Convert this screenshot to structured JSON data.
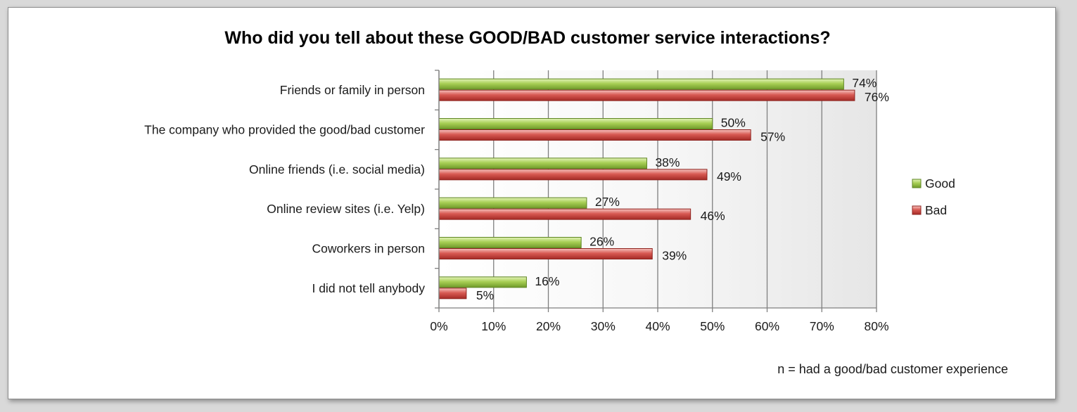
{
  "chart_data": {
    "type": "bar",
    "orientation": "horizontal",
    "title": "Who did you tell about these GOOD/BAD customer service interactions?",
    "categories": [
      "Friends or family in person",
      "The company who provided the good/bad customer",
      "Online friends (i.e. social media)",
      "Online review sites (i.e. Yelp)",
      "Coworkers in person",
      "I did not tell anybody"
    ],
    "series": [
      {
        "name": "Good",
        "values": [
          74,
          50,
          38,
          27,
          26,
          16
        ],
        "color": "#9bc34a"
      },
      {
        "name": "Bad",
        "values": [
          76,
          57,
          49,
          46,
          39,
          5
        ],
        "color": "#d9534f"
      }
    ],
    "data_labels": {
      "Good": [
        "74%",
        "50%",
        "38%",
        "27%",
        "26%",
        "16%"
      ],
      "Bad": [
        "76%",
        "57%",
        "49%",
        "46%",
        "39%",
        "5%"
      ]
    },
    "x_ticks": [
      "0%",
      "10%",
      "20%",
      "30%",
      "40%",
      "50%",
      "60%",
      "70%",
      "80%"
    ],
    "xlim": [
      0,
      80
    ],
    "grid": true,
    "legend_position": "right",
    "footnote": "n = had a good/bad customer experience"
  }
}
